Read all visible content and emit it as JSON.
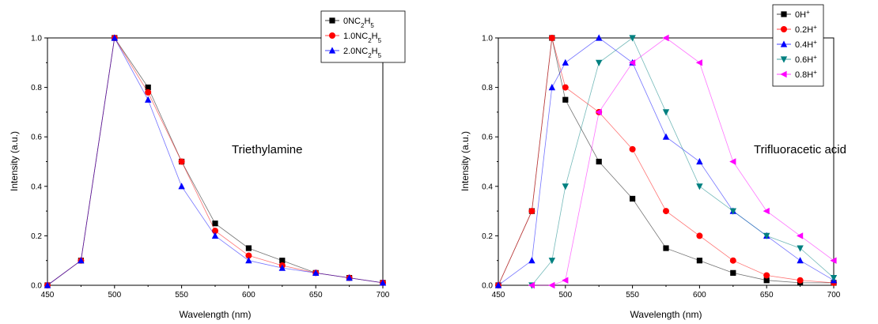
{
  "chart_data": [
    {
      "type": "line",
      "xlabel": "Wavelength (nm)",
      "ylabel": "Intensity (a.u.)",
      "xlim": [
        450,
        700
      ],
      "ylim": [
        0.0,
        1.0
      ],
      "xticks": [
        "450",
        "500",
        "550",
        "600",
        "650",
        "700"
      ],
      "yticks": [
        "0.0",
        "0.2",
        "0.4",
        "0.6",
        "0.8",
        "1.0"
      ],
      "annotation": "Triethylamine",
      "legend_position": "top-right",
      "series": [
        {
          "name": "0NC",
          "sub1": "2",
          "mid": "H",
          "sub2": "5",
          "sup": "",
          "color": "#000000",
          "marker": "square",
          "points": [
            [
              450,
              0
            ],
            [
              475,
              0.1
            ],
            [
              500,
              1.0
            ],
            [
              525,
              0.8
            ],
            [
              550,
              0.5
            ],
            [
              575,
              0.25
            ],
            [
              600,
              0.15
            ],
            [
              625,
              0.1
            ],
            [
              650,
              0.05
            ],
            [
              675,
              0.03
            ],
            [
              700,
              0.01
            ]
          ]
        },
        {
          "name": "1.0NC",
          "sub1": "2",
          "mid": "H",
          "sub2": "5",
          "sup": "",
          "color": "#ff0000",
          "marker": "circle",
          "points": [
            [
              450,
              0
            ],
            [
              475,
              0.1
            ],
            [
              500,
              1.0
            ],
            [
              525,
              0.78
            ],
            [
              550,
              0.5
            ],
            [
              575,
              0.22
            ],
            [
              600,
              0.12
            ],
            [
              625,
              0.08
            ],
            [
              650,
              0.05
            ],
            [
              675,
              0.03
            ],
            [
              700,
              0.01
            ]
          ]
        },
        {
          "name": "2.0NC",
          "sub1": "2",
          "mid": "H",
          "sub2": "5",
          "sup": "",
          "color": "#0000ff",
          "marker": "triangle-up",
          "points": [
            [
              450,
              0
            ],
            [
              475,
              0.1
            ],
            [
              500,
              1.0
            ],
            [
              525,
              0.75
            ],
            [
              550,
              0.4
            ],
            [
              575,
              0.2
            ],
            [
              600,
              0.1
            ],
            [
              625,
              0.07
            ],
            [
              650,
              0.05
            ],
            [
              675,
              0.03
            ],
            [
              700,
              0.01
            ]
          ]
        }
      ]
    },
    {
      "type": "line",
      "xlabel": "Wavelength (nm)",
      "ylabel": "Intensity (a.u.)",
      "xlim": [
        450,
        700
      ],
      "ylim": [
        0.0,
        1.0
      ],
      "xticks": [
        "450",
        "500",
        "550",
        "600",
        "650",
        "700"
      ],
      "yticks": [
        "0.0",
        "0.2",
        "0.4",
        "0.6",
        "0.8",
        "1.0"
      ],
      "annotation": "Trifluoracetic acid",
      "legend_position": "top-right",
      "series": [
        {
          "name": "0H",
          "sup": "+",
          "color": "#000000",
          "marker": "square",
          "points": [
            [
              450,
              0
            ],
            [
              475,
              0.3
            ],
            [
              490,
              1.0
            ],
            [
              500,
              0.75
            ],
            [
              525,
              0.5
            ],
            [
              550,
              0.35
            ],
            [
              575,
              0.15
            ],
            [
              600,
              0.1
            ],
            [
              625,
              0.05
            ],
            [
              650,
              0.02
            ],
            [
              675,
              0.01
            ],
            [
              700,
              0.01
            ]
          ]
        },
        {
          "name": "0.2H",
          "sup": "+",
          "color": "#ff0000",
          "marker": "circle",
          "points": [
            [
              450,
              0
            ],
            [
              475,
              0.3
            ],
            [
              490,
              1.0
            ],
            [
              500,
              0.8
            ],
            [
              525,
              0.7
            ],
            [
              550,
              0.55
            ],
            [
              575,
              0.3
            ],
            [
              600,
              0.2
            ],
            [
              625,
              0.1
            ],
            [
              650,
              0.04
            ],
            [
              675,
              0.02
            ],
            [
              700,
              0.01
            ]
          ]
        },
        {
          "name": "0.4H",
          "sup": "+",
          "color": "#0000ff",
          "marker": "triangle-up",
          "points": [
            [
              450,
              0
            ],
            [
              475,
              0.1
            ],
            [
              490,
              0.8
            ],
            [
              500,
              0.9
            ],
            [
              525,
              1.0
            ],
            [
              550,
              0.9
            ],
            [
              575,
              0.6
            ],
            [
              600,
              0.5
            ],
            [
              625,
              0.3
            ],
            [
              650,
              0.2
            ],
            [
              675,
              0.1
            ],
            [
              700,
              0.02
            ]
          ]
        },
        {
          "name": "0.6H",
          "sup": "+",
          "color": "#008080",
          "marker": "triangle-down",
          "points": [
            [
              475,
              0
            ],
            [
              490,
              0.1
            ],
            [
              500,
              0.4
            ],
            [
              525,
              0.9
            ],
            [
              550,
              1.0
            ],
            [
              575,
              0.7
            ],
            [
              600,
              0.4
            ],
            [
              625,
              0.3
            ],
            [
              650,
              0.2
            ],
            [
              675,
              0.15
            ],
            [
              700,
              0.03
            ]
          ]
        },
        {
          "name": "0.8H",
          "sup": "+",
          "color": "#ff00ff",
          "marker": "triangle-left",
          "points": [
            [
              475,
              0
            ],
            [
              490,
              0
            ],
            [
              500,
              0.02
            ],
            [
              525,
              0.7
            ],
            [
              550,
              0.9
            ],
            [
              575,
              1.0
            ],
            [
              600,
              0.9
            ],
            [
              625,
              0.5
            ],
            [
              650,
              0.3
            ],
            [
              675,
              0.2
            ],
            [
              700,
              0.1
            ]
          ]
        }
      ]
    }
  ]
}
